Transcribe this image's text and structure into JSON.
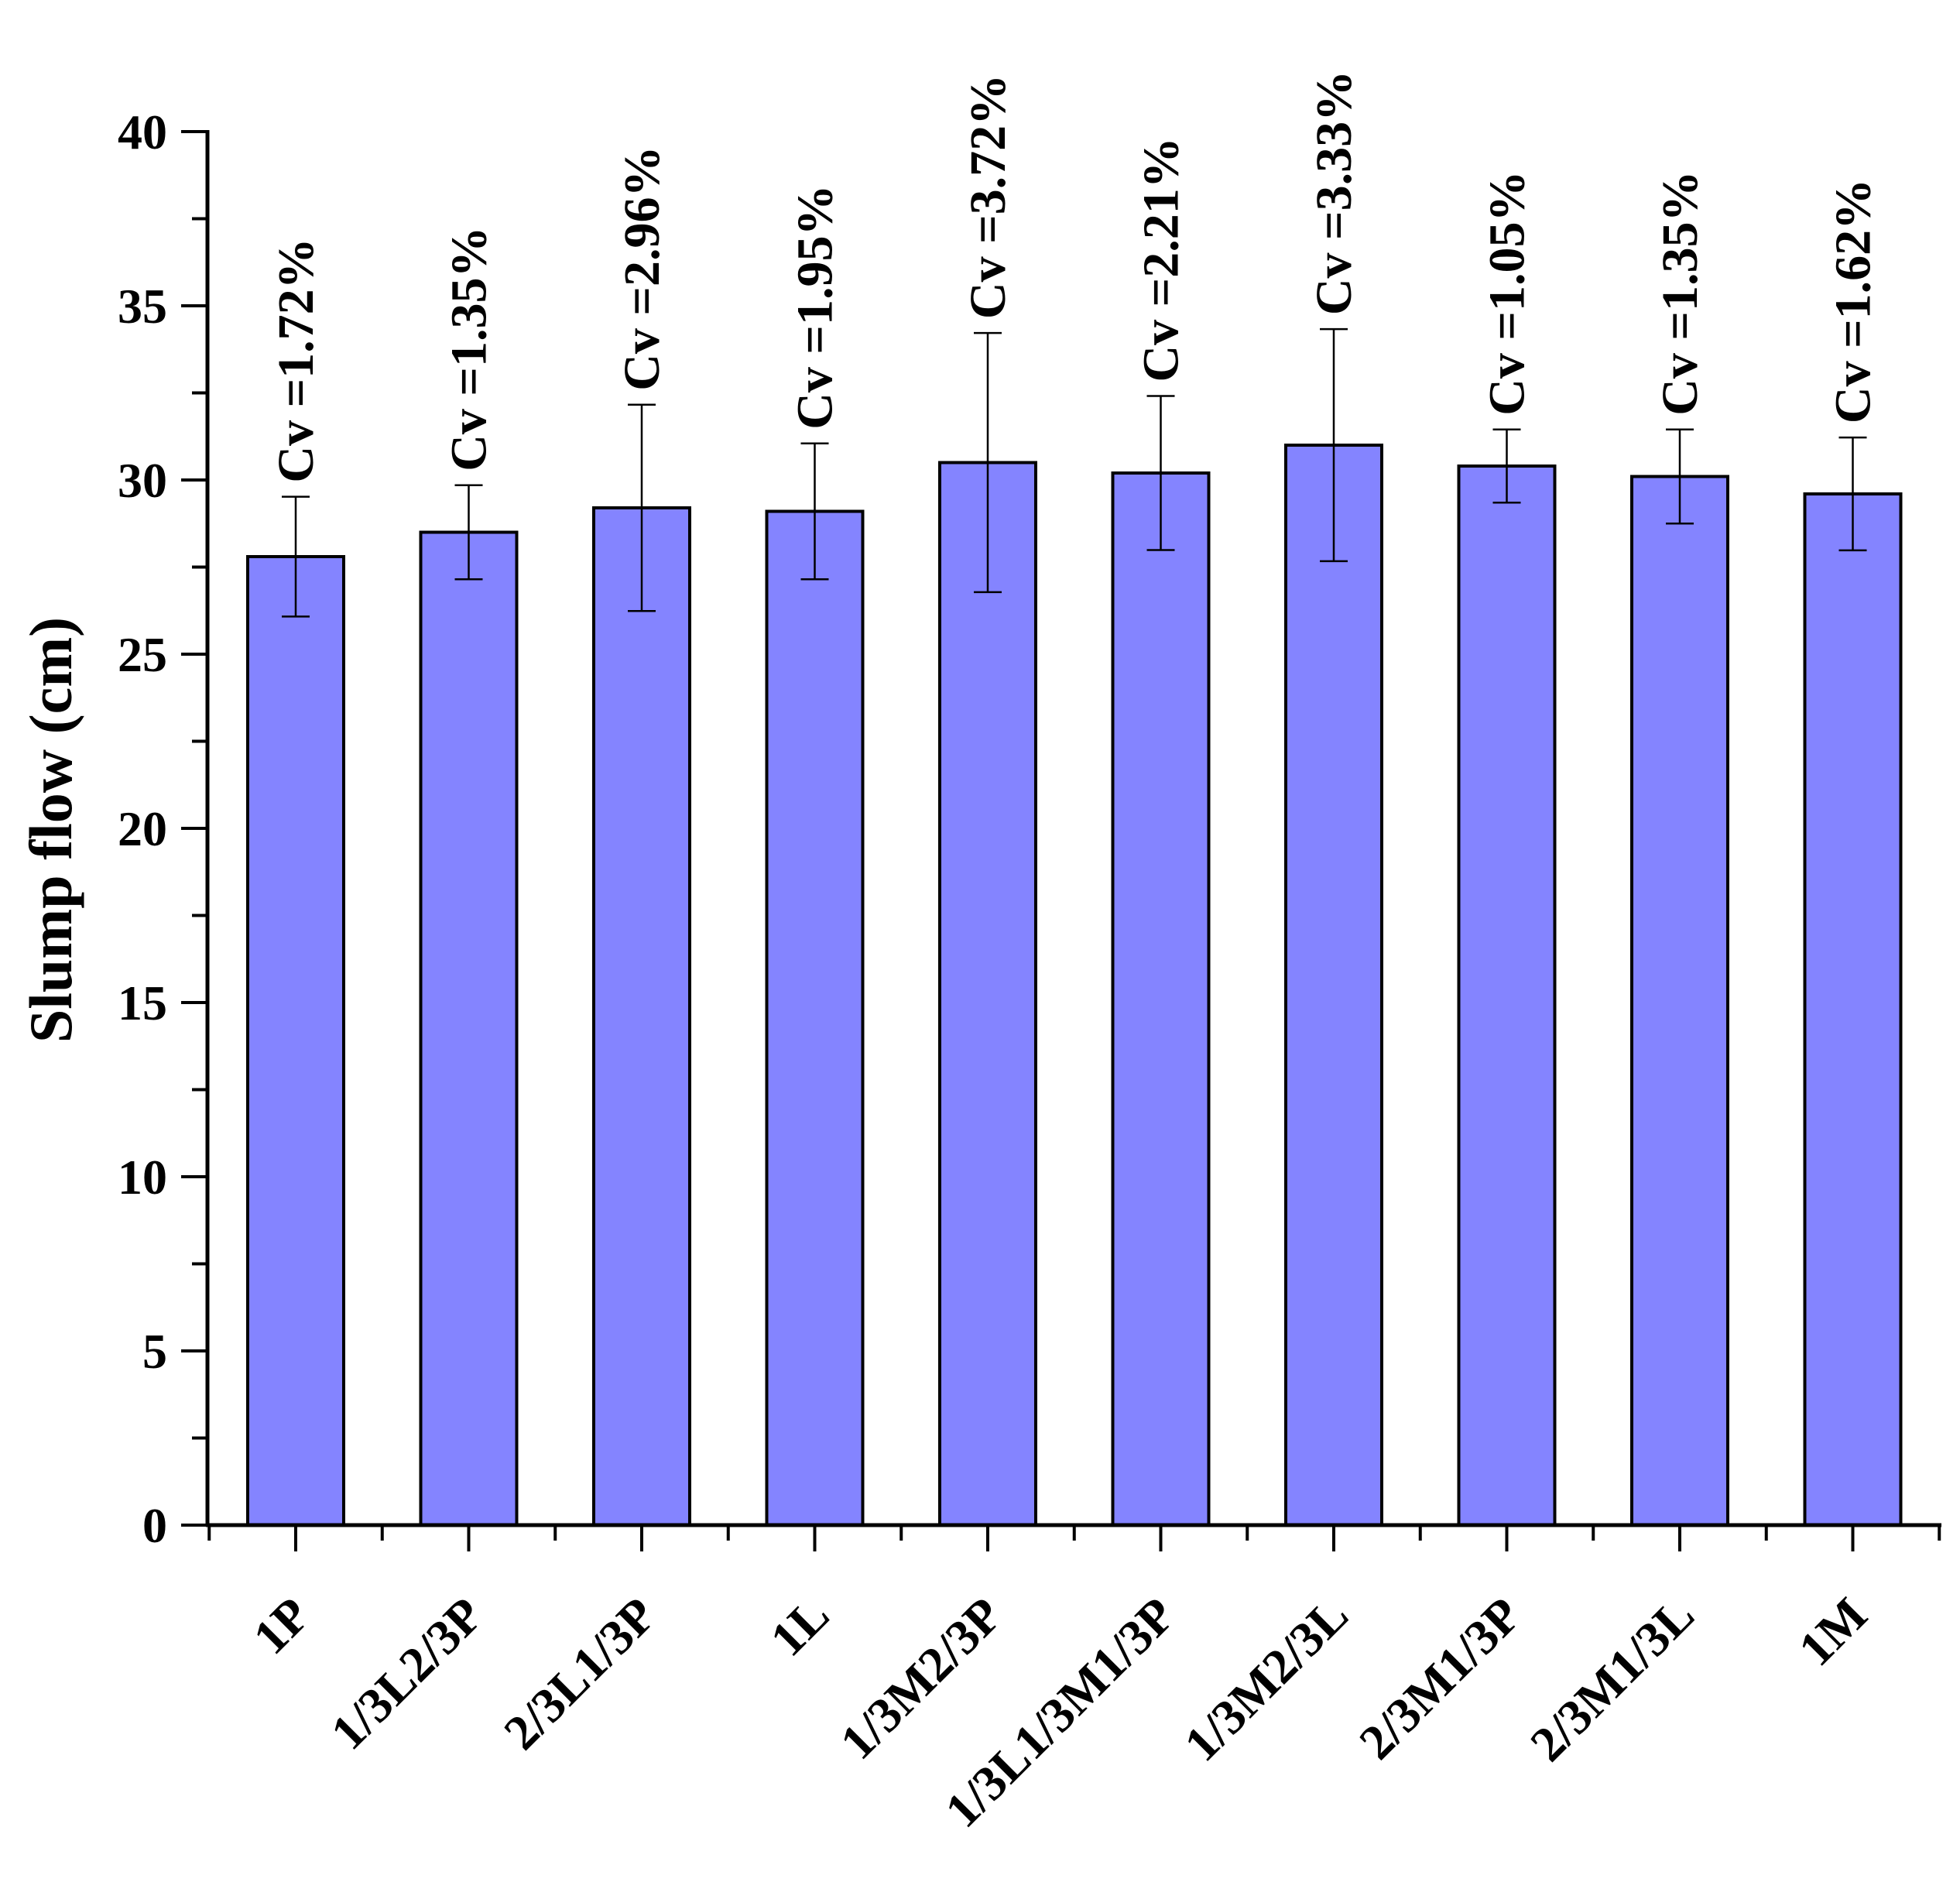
{
  "chart_data": {
    "type": "bar",
    "title": "",
    "xlabel": "",
    "ylabel": "Slump flow (cm)",
    "ylim": [
      0,
      40
    ],
    "yticks": [
      0,
      5,
      10,
      15,
      20,
      25,
      30,
      35,
      40
    ],
    "grid": false,
    "categories": [
      "1P",
      "1/3L2/3P",
      "2/3L1/3P",
      "1L",
      "1/3M2/3P",
      "1/3L1/3M1/3P",
      "1/3M2/3L",
      "2/3M1/3P",
      "2/3M1/3L",
      "1M"
    ],
    "series": [
      {
        "values": [
          27.8,
          28.5,
          29.2,
          29.1,
          30.5,
          30.2,
          31.0,
          30.4,
          30.1,
          29.6
        ],
        "error": [
          1.72,
          1.35,
          2.96,
          1.95,
          3.72,
          2.21,
          3.33,
          1.05,
          1.35,
          1.62
        ],
        "annotations": [
          "Cv =1.72%",
          "Cv =1.35%",
          "Cv =2.96%",
          "Cv =1.95%",
          "Cv =3.72%",
          "Cv =2.21%",
          "Cv =3.33%",
          "Cv =1.05%",
          "Cv =1.35%",
          "Cv =1.62%"
        ]
      }
    ],
    "colors": {
      "bar_fill": "#8484ff",
      "bar_stroke": "#000000",
      "axis": "#000000"
    }
  }
}
